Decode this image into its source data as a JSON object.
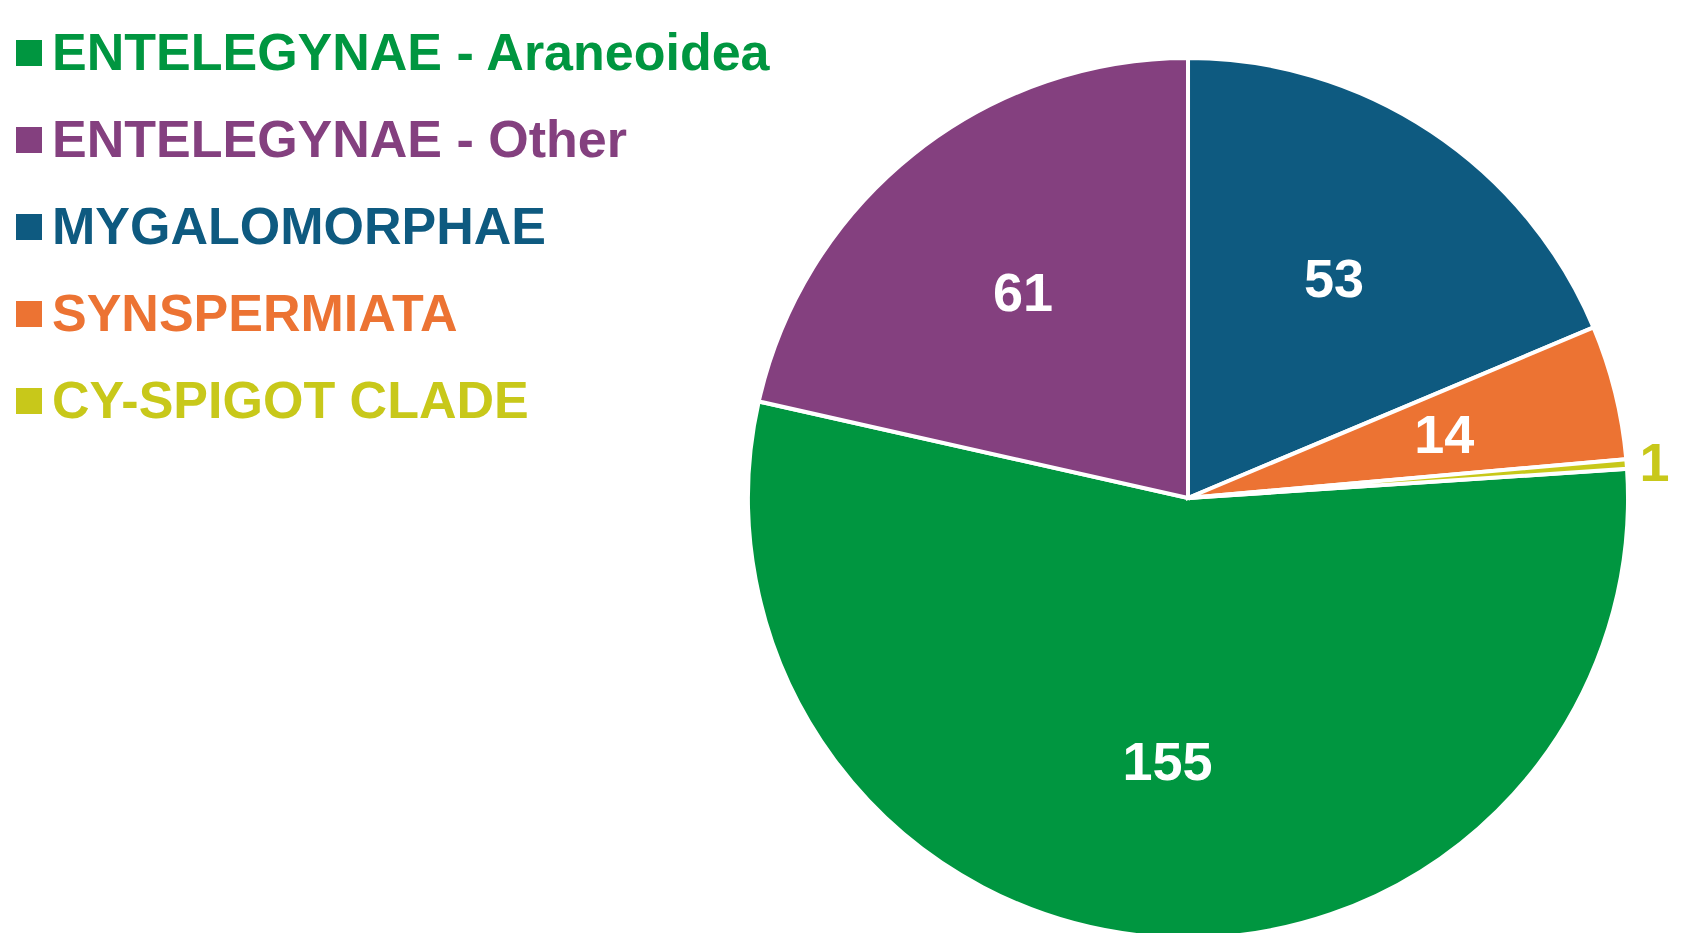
{
  "chart_data": {
    "type": "pie",
    "categories": [
      "ENTELEGYNAE - Araneoidea",
      "ENTELEGYNAE - Other",
      "MYGALOMORPHAE",
      "SYNSPERMIATA",
      "CY-SPIGOT CLADE"
    ],
    "values": [
      155,
      61,
      53,
      14,
      1
    ],
    "colors": [
      "#009640",
      "#84407f",
      "#0e5a80",
      "#ec7333",
      "#c8c81a"
    ],
    "data_labels": true,
    "legend": "top left"
  }
}
